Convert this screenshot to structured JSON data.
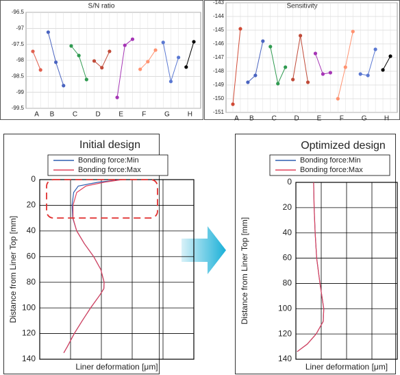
{
  "chart_data": [
    {
      "type": "line",
      "title": "S/N ratio",
      "ylim": [
        -96.5,
        -99.5
      ],
      "yticks": [
        -96.5,
        -97,
        -97.5,
        -98,
        -98.5,
        -99,
        -99.5
      ],
      "grid": true,
      "series": [
        {
          "name": "A",
          "color": "#e0604f",
          "values": [
            -97.72,
            -98.3
          ]
        },
        {
          "name": "B",
          "color": "#4a64c0",
          "values": [
            -97.12,
            -98.06,
            -98.79
          ]
        },
        {
          "name": "C",
          "color": "#2f9a50",
          "values": [
            -97.55,
            -97.85,
            -98.6
          ]
        },
        {
          "name": "D",
          "color": "#c04a38",
          "values": [
            -98.02,
            -98.23,
            -97.72
          ]
        },
        {
          "name": "E",
          "color": "#a535b5",
          "values": [
            -99.16,
            -97.53,
            -97.34
          ]
        },
        {
          "name": "F",
          "color": "#ff9270",
          "values": [
            -98.28,
            -98.04,
            -97.68
          ]
        },
        {
          "name": "G",
          "color": "#5a78d2",
          "values": [
            -97.44,
            -98.66,
            -97.91
          ]
        },
        {
          "name": "H",
          "color": "#000000",
          "values": [
            -98.21,
            -97.42
          ]
        }
      ]
    },
    {
      "type": "line",
      "title": "Sensitivity",
      "ylim": [
        -143,
        -151
      ],
      "yticks": [
        -143,
        -144,
        -145,
        -146,
        -147,
        -148,
        -149,
        -150,
        -151
      ],
      "grid": true,
      "series": [
        {
          "name": "A",
          "color": "#d04a35",
          "values": [
            -150.4,
            -144.9
          ]
        },
        {
          "name": "B",
          "color": "#4a64c0",
          "values": [
            -148.8,
            -148.3,
            -145.8
          ]
        },
        {
          "name": "C",
          "color": "#2f9a50",
          "values": [
            -146.2,
            -148.9,
            -147.7
          ]
        },
        {
          "name": "D",
          "color": "#c04a38",
          "values": [
            -148.6,
            -145.4,
            -148.8
          ]
        },
        {
          "name": "E",
          "color": "#a535b5",
          "values": [
            -146.7,
            -148.2,
            -148.1
          ]
        },
        {
          "name": "F",
          "color": "#ff9270",
          "values": [
            -150.0,
            -147.7,
            -145.1
          ]
        },
        {
          "name": "G",
          "color": "#5a78d2",
          "values": [
            -148.2,
            -148.3,
            -146.4
          ]
        },
        {
          "name": "H",
          "color": "#000000",
          "values": [
            -147.9,
            -146.9
          ]
        }
      ]
    },
    {
      "type": "profile",
      "title": "Initial design",
      "x_label": "Liner deformation [μm]",
      "y_label": "Distance from Liner Top [mm]",
      "xlim": [
        0,
        5
      ],
      "xticks": [
        0,
        1,
        2,
        3,
        4,
        5
      ],
      "ylim": [
        0,
        140
      ],
      "yticks": [
        0,
        20,
        40,
        60,
        80,
        100,
        120,
        140
      ],
      "invert_y": true,
      "grid": true,
      "series": [
        {
          "name": "Bonding force:Min",
          "color": "#2f5fb0",
          "x": [
            2.67,
            1.9,
            1.25,
            1.1,
            1.05,
            1.07,
            1.2,
            1.45,
            1.75,
            1.98,
            2.09,
            2.08,
            1.95,
            1.65,
            1.38,
            1.12,
            0.9,
            0.78
          ],
          "y": [
            0,
            2,
            5,
            10,
            20,
            30,
            40,
            50,
            60,
            70,
            80,
            85,
            90,
            100,
            110,
            120,
            130,
            135
          ]
        },
        {
          "name": "Bonding force:Max",
          "color": "#e0405a",
          "x": [
            2.67,
            2.1,
            1.5,
            1.2,
            1.08,
            1.08,
            1.2,
            1.45,
            1.75,
            1.98,
            2.09,
            2.08,
            1.95,
            1.65,
            1.38,
            1.12,
            0.9,
            0.78
          ],
          "y": [
            0,
            2,
            5,
            10,
            20,
            30,
            40,
            50,
            60,
            70,
            80,
            85,
            90,
            100,
            110,
            120,
            130,
            135
          ]
        }
      ]
    },
    {
      "type": "profile",
      "title": "Optimized design",
      "x_label": "Liner deformation [μm]",
      "y_label": "Distance from Liner Top [mm]",
      "xlim": [
        0,
        4
      ],
      "xticks": [
        0,
        1,
        2,
        3,
        4
      ],
      "ylim": [
        0,
        140
      ],
      "yticks": [
        0,
        20,
        40,
        60,
        80,
        100,
        120,
        140
      ],
      "invert_y": true,
      "grid": true,
      "series": [
        {
          "name": "Bonding force:Min",
          "color": "#2f5fb0",
          "x": [
            0.7,
            0.72,
            0.76,
            0.82,
            0.95,
            1.1,
            1.08,
            0.8,
            0.45,
            0.05
          ],
          "y": [
            0,
            20,
            40,
            60,
            80,
            100,
            110,
            120,
            128,
            134
          ]
        },
        {
          "name": "Bonding force:Max",
          "color": "#e0405a",
          "x": [
            0.7,
            0.72,
            0.76,
            0.82,
            0.95,
            1.1,
            1.08,
            0.8,
            0.45,
            0.05
          ],
          "y": [
            0,
            20,
            40,
            60,
            80,
            100,
            110,
            120,
            128,
            134
          ]
        }
      ]
    }
  ]
}
